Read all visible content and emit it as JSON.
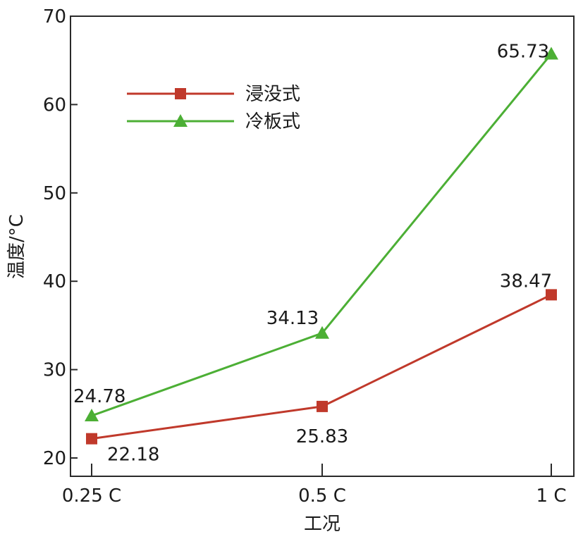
{
  "chart_data": {
    "type": "line",
    "title": "",
    "xlabel": "工况",
    "ylabel": "温度/°C",
    "categories": [
      "0.25 C",
      "0.5 C",
      "1 C"
    ],
    "ylim": [
      20,
      70
    ],
    "yticks": [
      20,
      30,
      40,
      50,
      60,
      70
    ],
    "grid": false,
    "legend_position": "top-left",
    "series": [
      {
        "name": "浸没式",
        "marker": "square",
        "color": "#c0392b",
        "values": [
          22.18,
          25.83,
          38.47
        ],
        "labels": [
          "22.18",
          "25.83",
          "38.47"
        ]
      },
      {
        "name": "冷板式",
        "marker": "triangle",
        "color": "#4caf35",
        "values": [
          24.78,
          34.13,
          65.73
        ],
        "labels": [
          "24.78",
          "34.13",
          "65.73"
        ]
      }
    ]
  }
}
